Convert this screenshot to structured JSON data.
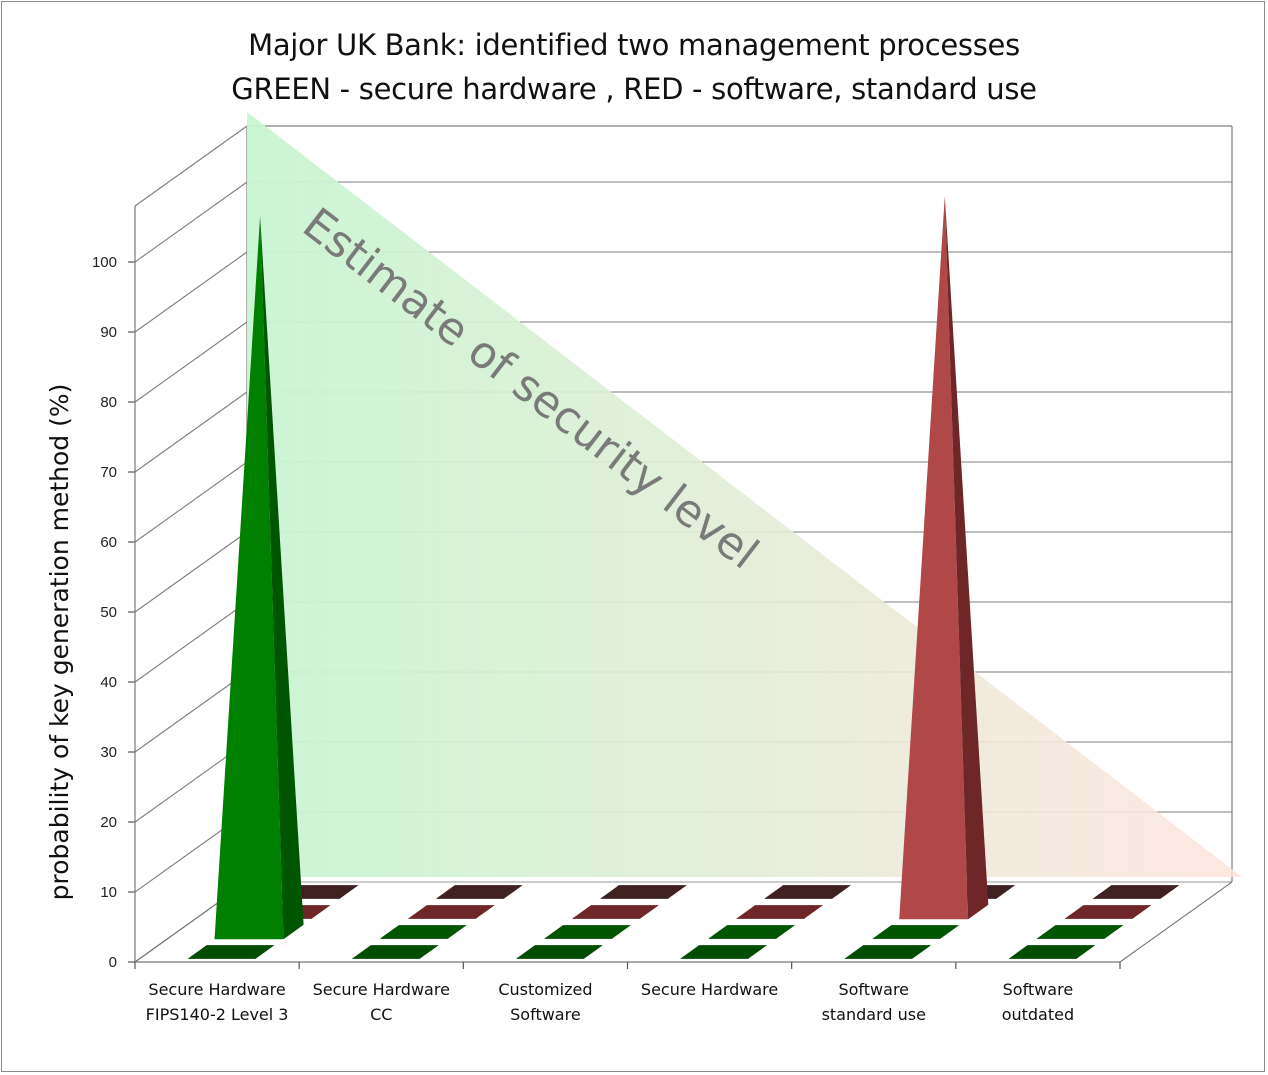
{
  "chart_data": {
    "type": "bar",
    "title_lines": [
      "Major UK Bank: identified two management processes",
      "GREEN - secure hardware , RED - software, standard use"
    ],
    "ylabel": "probability of key generation method  (%)",
    "ylim": [
      0,
      100
    ],
    "yticks": [
      0,
      10,
      20,
      30,
      40,
      50,
      60,
      70,
      80,
      90,
      100
    ],
    "grid": true,
    "categories": [
      [
        "Secure Hardware",
        "FIPS140-2 Level 3"
      ],
      [
        "Secure Hardware",
        "CC"
      ],
      [
        "Customized",
        "Software"
      ],
      [
        "Secure Hardware"
      ],
      [
        "Software",
        "standard use"
      ],
      [
        "Software",
        "outdated"
      ]
    ],
    "series": [
      {
        "color": "#007a00",
        "side": "#004d00",
        "values": [
          0,
          0,
          0,
          0,
          0,
          0
        ]
      },
      {
        "color": "#008000",
        "side": "#005500",
        "values": [
          100,
          0,
          0,
          0,
          0,
          0
        ]
      },
      {
        "color": "#b04848",
        "side": "#6e2626",
        "values": [
          0,
          0,
          0,
          0,
          100,
          0
        ]
      },
      {
        "color": "#6e3c3c",
        "side": "#402020",
        "values": [
          0,
          0,
          0,
          0,
          0,
          0
        ]
      }
    ],
    "annotation": "Estimate of security level",
    "colors": {
      "triangle_left": "#c8f5d2",
      "triangle_right": "#fde4dc",
      "grid": "#7f7f7f"
    }
  }
}
